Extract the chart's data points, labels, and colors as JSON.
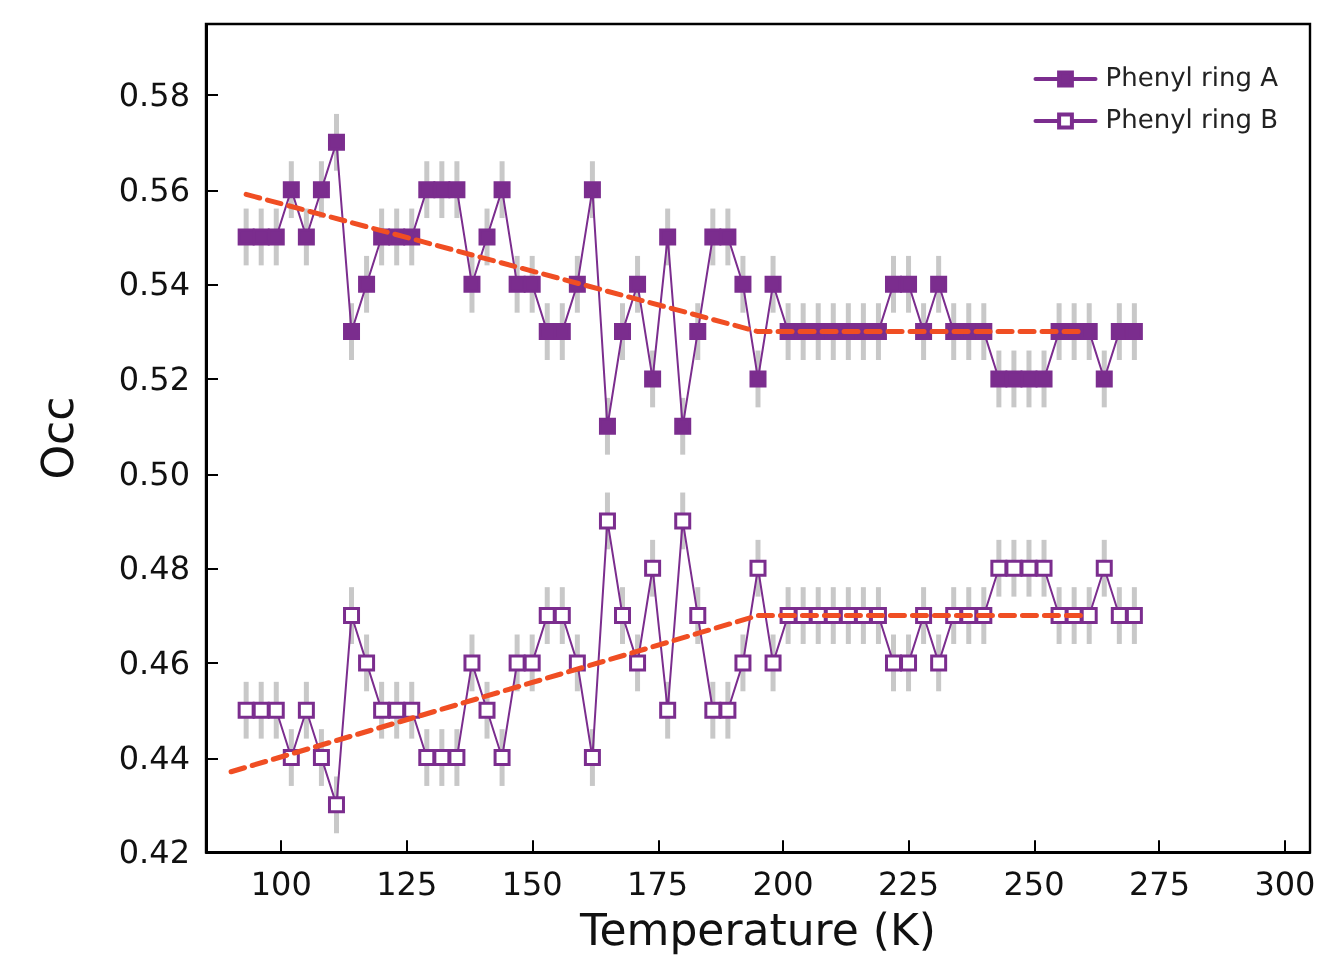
{
  "chart_data": {
    "type": "line",
    "xlabel": "Temperature (K)",
    "ylabel": "Occ",
    "x": [
      93,
      96,
      99,
      102,
      105,
      108,
      111,
      114,
      117,
      120,
      123,
      126,
      129,
      132,
      135,
      138,
      141,
      144,
      147,
      150,
      153,
      156,
      159,
      162,
      165,
      168,
      171,
      174,
      177,
      180,
      183,
      186,
      189,
      192,
      195,
      198,
      201,
      204,
      207,
      210,
      213,
      216,
      219,
      222,
      225,
      228,
      231,
      234,
      237,
      240,
      243,
      246,
      249,
      252,
      255,
      258,
      261,
      264,
      267,
      270
    ],
    "series": [
      {
        "name": "Phenyl ring A",
        "color": "#7b2d8e",
        "marker": "square",
        "values": [
          0.55,
          0.55,
          0.55,
          0.56,
          0.55,
          0.56,
          0.57,
          0.53,
          0.54,
          0.55,
          0.55,
          0.55,
          0.56,
          0.56,
          0.56,
          0.54,
          0.55,
          0.56,
          0.54,
          0.54,
          0.53,
          0.53,
          0.54,
          0.56,
          0.51,
          0.53,
          0.54,
          0.52,
          0.55,
          0.51,
          0.53,
          0.55,
          0.55,
          0.54,
          0.52,
          0.54,
          0.53,
          0.53,
          0.53,
          0.53,
          0.53,
          0.53,
          0.53,
          0.54,
          0.54,
          0.53,
          0.54,
          0.53,
          0.53,
          0.53,
          0.52,
          0.52,
          0.52,
          0.52,
          0.53,
          0.53,
          0.53,
          0.52,
          0.53,
          0.53
        ],
        "errors": [
          0.006,
          0.006,
          0.006,
          0.006,
          0.006,
          0.006,
          0.006,
          0.006,
          0.006,
          0.006,
          0.006,
          0.006,
          0.006,
          0.006,
          0.006,
          0.006,
          0.006,
          0.006,
          0.006,
          0.006,
          0.006,
          0.006,
          0.006,
          0.006,
          0.006,
          0.006,
          0.006,
          0.006,
          0.006,
          0.006,
          0.006,
          0.006,
          0.006,
          0.006,
          0.006,
          0.006,
          0.006,
          0.006,
          0.006,
          0.006,
          0.006,
          0.006,
          0.006,
          0.006,
          0.006,
          0.006,
          0.006,
          0.006,
          0.006,
          0.006,
          0.006,
          0.006,
          0.006,
          0.006,
          0.006,
          0.006,
          0.006,
          0.006,
          0.006,
          0.006
        ]
      },
      {
        "name": "Phenyl ring B",
        "color": "#7b2d8e",
        "marker": "square",
        "values": [
          0.45,
          0.45,
          0.45,
          0.44,
          0.45,
          0.44,
          0.43,
          0.47,
          0.46,
          0.45,
          0.45,
          0.45,
          0.44,
          0.44,
          0.44,
          0.46,
          0.45,
          0.44,
          0.46,
          0.46,
          0.47,
          0.47,
          0.46,
          0.44,
          0.49,
          0.47,
          0.46,
          0.48,
          0.45,
          0.49,
          0.47,
          0.45,
          0.45,
          0.46,
          0.48,
          0.46,
          0.47,
          0.47,
          0.47,
          0.47,
          0.47,
          0.47,
          0.47,
          0.46,
          0.46,
          0.47,
          0.46,
          0.47,
          0.47,
          0.47,
          0.48,
          0.48,
          0.48,
          0.48,
          0.47,
          0.47,
          0.47,
          0.48,
          0.47,
          0.47
        ],
        "errors": [
          0.006,
          0.006,
          0.006,
          0.006,
          0.006,
          0.006,
          0.006,
          0.006,
          0.006,
          0.006,
          0.006,
          0.006,
          0.006,
          0.006,
          0.006,
          0.006,
          0.006,
          0.006,
          0.006,
          0.006,
          0.006,
          0.006,
          0.006,
          0.006,
          0.006,
          0.006,
          0.006,
          0.006,
          0.006,
          0.006,
          0.006,
          0.006,
          0.006,
          0.006,
          0.006,
          0.006,
          0.006,
          0.006,
          0.006,
          0.006,
          0.006,
          0.006,
          0.006,
          0.006,
          0.006,
          0.006,
          0.006,
          0.006,
          0.006,
          0.006,
          0.006,
          0.006,
          0.006,
          0.006,
          0.006,
          0.006,
          0.006,
          0.006,
          0.006,
          0.006
        ]
      },
      {
        "type": "line",
        "color": "#f04e23",
        "line_style": "dashed",
        "marker": "none",
        "x": [
          93,
          195,
          260
        ],
        "values": [
          0.559,
          0.53,
          0.53
        ]
      },
      {
        "type": "line",
        "color": "#f04e23",
        "line_style": "dashed",
        "marker": "none",
        "x": [
          90,
          195,
          260
        ],
        "values": [
          0.437,
          0.47,
          0.47
        ]
      }
    ],
    "xlim": [
      85,
      305
    ],
    "xticks": [
      100,
      125,
      150,
      175,
      200,
      225,
      250,
      275,
      300
    ],
    "ylim": [
      0.42,
      0.595
    ],
    "yticks": [
      0.42,
      0.44,
      0.46,
      0.48,
      {
        "value": 0.5,
        "label": "0.50"
      },
      0.52,
      0.54,
      0.56,
      0.58
    ],
    "grid": false,
    "legend": "top right"
  }
}
